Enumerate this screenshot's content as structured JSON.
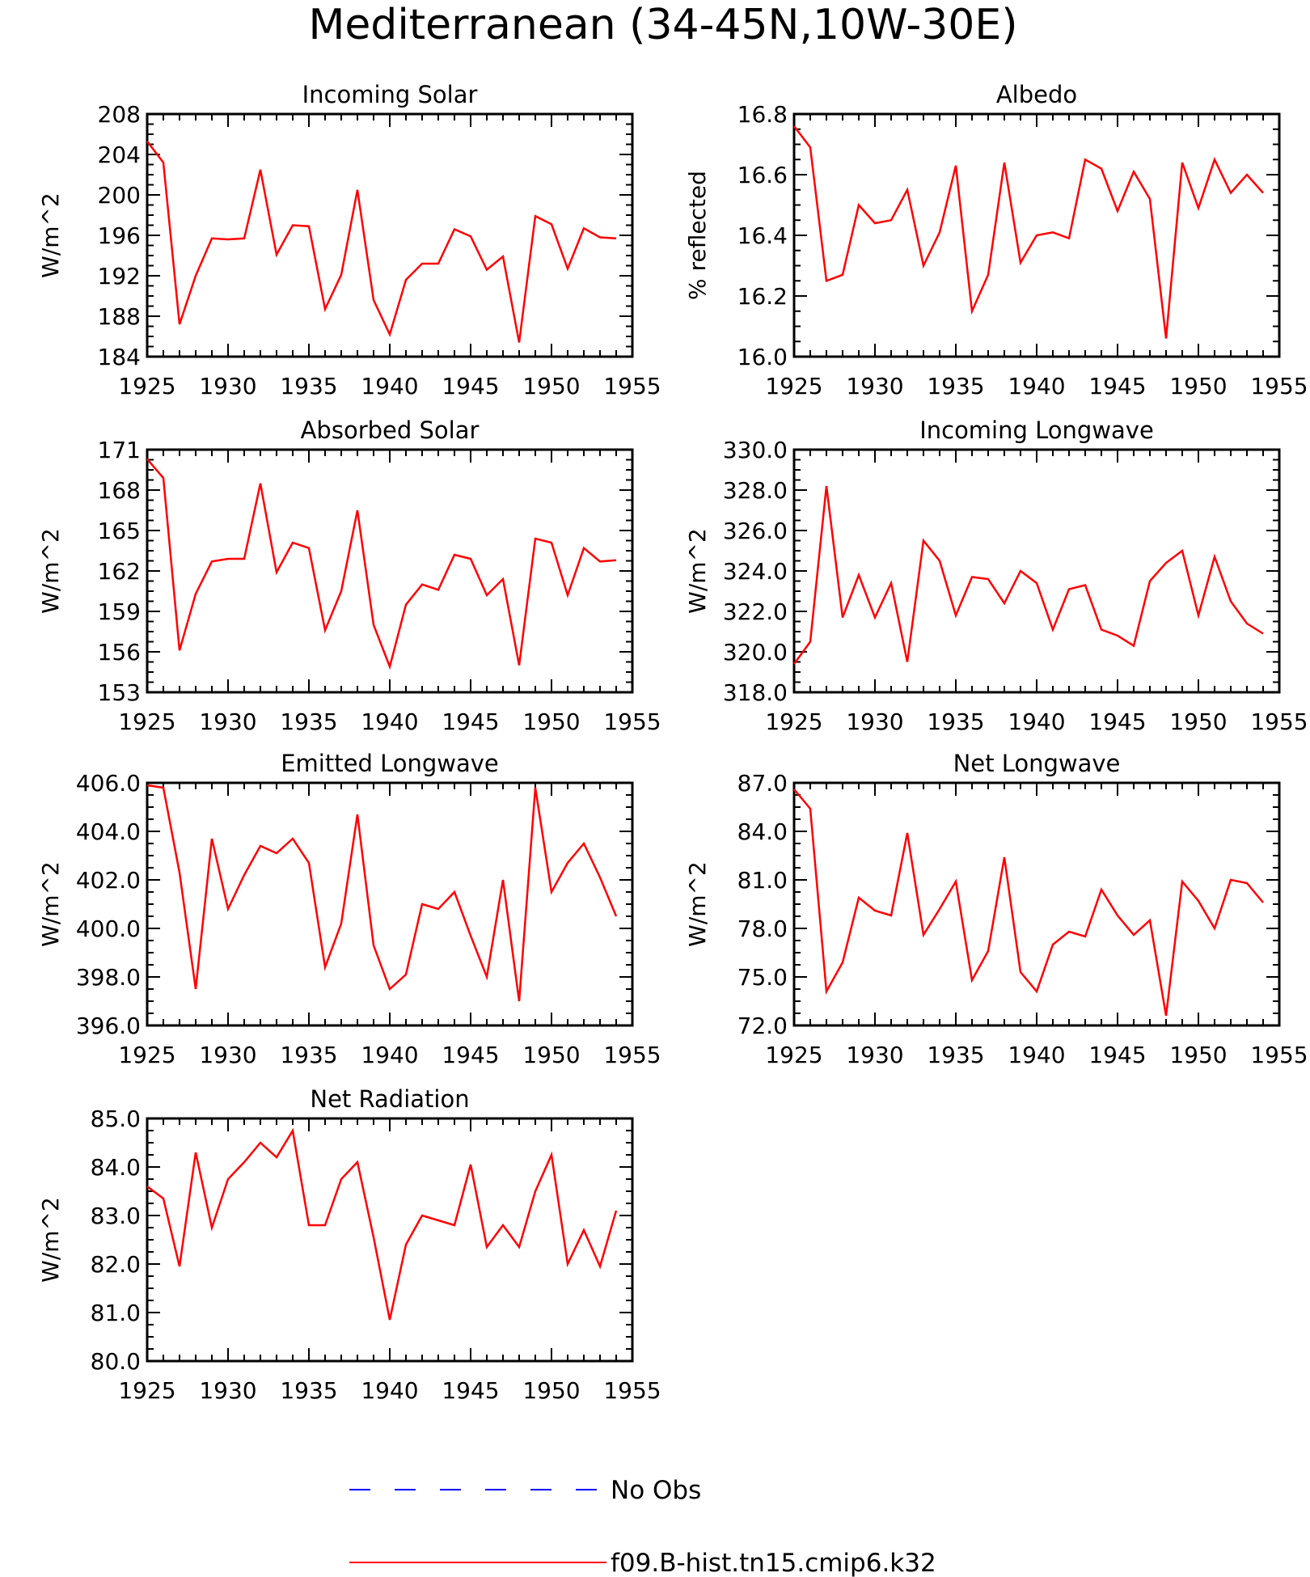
{
  "title": "Mediterranean (34-45N,10W-30E)",
  "legend": [
    {
      "label": "No Obs",
      "color": "#0000ff",
      "dash": "dashed"
    },
    {
      "label": "f09.B-hist.tn15.cmip6.k32",
      "color": "#ff0000",
      "dash": "solid"
    }
  ],
  "chart_data": [
    {
      "type": "line",
      "title": "Incoming Solar",
      "ylabel": "W/m^2",
      "xlim": [
        1925,
        1955
      ],
      "ylim": [
        184,
        208
      ],
      "xticks": [
        "1925",
        "1930",
        "1935",
        "1940",
        "1945",
        "1950",
        "1955"
      ],
      "yticks": [
        "184",
        "188",
        "192",
        "196",
        "200",
        "204",
        "208"
      ],
      "grid": false,
      "series": [
        {
          "color": "#ff0000",
          "x": [
            1925,
            1926,
            1927,
            1928,
            1929,
            1930,
            1931,
            1932,
            1933,
            1934,
            1935,
            1936,
            1937,
            1938,
            1939,
            1940,
            1941,
            1942,
            1943,
            1944,
            1945,
            1946,
            1947,
            1948,
            1949,
            1950,
            1951,
            1952,
            1953,
            1954
          ],
          "values": [
            205.3,
            203.2,
            187.2,
            192.0,
            195.7,
            195.6,
            195.7,
            202.5,
            194.1,
            197.0,
            196.9,
            188.7,
            192.1,
            200.5,
            189.6,
            186.2,
            191.6,
            193.2,
            193.2,
            196.6,
            195.9,
            192.6,
            193.9,
            185.4,
            197.9,
            197.1,
            192.7,
            196.7,
            195.8,
            195.7
          ]
        }
      ]
    },
    {
      "type": "line",
      "title": "Albedo",
      "ylabel": "% reflected",
      "xlim": [
        1925,
        1955
      ],
      "ylim": [
        16.0,
        16.8
      ],
      "xticks": [
        "1925",
        "1930",
        "1935",
        "1940",
        "1945",
        "1950",
        "1955"
      ],
      "yticks": [
        "16.0",
        "16.2",
        "16.4",
        "16.6",
        "16.8"
      ],
      "grid": false,
      "series": [
        {
          "color": "#ff0000",
          "x": [
            1925,
            1926,
            1927,
            1928,
            1929,
            1930,
            1931,
            1932,
            1933,
            1934,
            1935,
            1936,
            1937,
            1938,
            1939,
            1940,
            1941,
            1942,
            1943,
            1944,
            1945,
            1946,
            1947,
            1948,
            1949,
            1950,
            1951,
            1952,
            1953,
            1954
          ],
          "values": [
            16.76,
            16.69,
            16.25,
            16.27,
            16.5,
            16.44,
            16.45,
            16.55,
            16.3,
            16.41,
            16.63,
            16.15,
            16.27,
            16.64,
            16.31,
            16.4,
            16.41,
            16.39,
            16.65,
            16.62,
            16.48,
            16.61,
            16.52,
            16.06,
            16.64,
            16.49,
            16.65,
            16.54,
            16.6,
            16.54
          ]
        }
      ]
    },
    {
      "type": "line",
      "title": "Absorbed Solar",
      "ylabel": "W/m^2",
      "xlim": [
        1925,
        1955
      ],
      "ylim": [
        153,
        171
      ],
      "xticks": [
        "1925",
        "1930",
        "1935",
        "1940",
        "1945",
        "1950",
        "1955"
      ],
      "yticks": [
        "153",
        "156",
        "159",
        "162",
        "165",
        "168",
        "171"
      ],
      "grid": false,
      "series": [
        {
          "color": "#ff0000",
          "x": [
            1925,
            1926,
            1927,
            1928,
            1929,
            1930,
            1931,
            1932,
            1933,
            1934,
            1935,
            1936,
            1937,
            1938,
            1939,
            1940,
            1941,
            1942,
            1943,
            1944,
            1945,
            1946,
            1947,
            1948,
            1949,
            1950,
            1951,
            1952,
            1953,
            1954
          ],
          "values": [
            170.3,
            168.9,
            156.1,
            160.3,
            162.7,
            162.9,
            162.9,
            168.5,
            161.9,
            164.1,
            163.7,
            157.6,
            160.5,
            166.5,
            158.0,
            154.9,
            159.5,
            161.0,
            160.6,
            163.2,
            162.9,
            160.2,
            161.4,
            155.0,
            164.4,
            164.1,
            160.2,
            163.7,
            162.7,
            162.8
          ]
        }
      ]
    },
    {
      "type": "line",
      "title": "Incoming Longwave",
      "ylabel": "W/m^2",
      "xlim": [
        1925,
        1955
      ],
      "ylim": [
        318.0,
        330.0
      ],
      "xticks": [
        "1925",
        "1930",
        "1935",
        "1940",
        "1945",
        "1950",
        "1955"
      ],
      "yticks": [
        "318.0",
        "320.0",
        "322.0",
        "324.0",
        "326.0",
        "328.0",
        "330.0"
      ],
      "grid": false,
      "series": [
        {
          "color": "#ff0000",
          "x": [
            1925,
            1926,
            1927,
            1928,
            1929,
            1930,
            1931,
            1932,
            1933,
            1934,
            1935,
            1936,
            1937,
            1938,
            1939,
            1940,
            1941,
            1942,
            1943,
            1944,
            1945,
            1946,
            1947,
            1948,
            1949,
            1950,
            1951,
            1952,
            1953,
            1954
          ],
          "values": [
            319.4,
            320.5,
            328.2,
            321.7,
            323.8,
            321.7,
            323.4,
            319.5,
            325.5,
            324.5,
            321.8,
            323.7,
            323.6,
            322.4,
            324.0,
            323.4,
            321.1,
            323.1,
            323.3,
            321.1,
            320.8,
            320.3,
            323.5,
            324.4,
            325.0,
            321.8,
            324.7,
            322.5,
            321.4,
            320.9
          ]
        }
      ]
    },
    {
      "type": "line",
      "title": "Emitted Longwave",
      "ylabel": "W/m^2",
      "xlim": [
        1925,
        1955
      ],
      "ylim": [
        396.0,
        406.0
      ],
      "xticks": [
        "1925",
        "1930",
        "1935",
        "1940",
        "1945",
        "1950",
        "1955"
      ],
      "yticks": [
        "396.0",
        "398.0",
        "400.0",
        "402.0",
        "404.0",
        "406.0"
      ],
      "grid": false,
      "series": [
        {
          "color": "#ff0000",
          "x": [
            1925,
            1926,
            1927,
            1928,
            1929,
            1930,
            1931,
            1932,
            1933,
            1934,
            1935,
            1936,
            1937,
            1938,
            1939,
            1940,
            1941,
            1942,
            1943,
            1944,
            1945,
            1946,
            1947,
            1948,
            1949,
            1950,
            1951,
            1952,
            1953,
            1954
          ],
          "values": [
            405.9,
            405.8,
            402.3,
            397.5,
            403.7,
            400.8,
            402.2,
            403.4,
            403.1,
            403.7,
            402.7,
            398.4,
            400.2,
            404.7,
            399.3,
            397.5,
            398.1,
            401.0,
            400.8,
            401.5,
            399.7,
            398.0,
            402.0,
            397.0,
            405.8,
            401.5,
            402.7,
            403.5,
            402.1,
            400.5
          ]
        }
      ]
    },
    {
      "type": "line",
      "title": "Net Longwave",
      "ylabel": "W/m^2",
      "xlim": [
        1925,
        1955
      ],
      "ylim": [
        72.0,
        87.0
      ],
      "xticks": [
        "1925",
        "1930",
        "1935",
        "1940",
        "1945",
        "1950",
        "1955"
      ],
      "yticks": [
        "72.0",
        "75.0",
        "78.0",
        "81.0",
        "84.0",
        "87.0"
      ],
      "grid": false,
      "series": [
        {
          "color": "#ff0000",
          "x": [
            1925,
            1926,
            1927,
            1928,
            1929,
            1930,
            1931,
            1932,
            1933,
            1934,
            1935,
            1936,
            1937,
            1938,
            1939,
            1940,
            1941,
            1942,
            1943,
            1944,
            1945,
            1946,
            1947,
            1948,
            1949,
            1950,
            1951,
            1952,
            1953,
            1954
          ],
          "values": [
            86.6,
            85.4,
            74.1,
            75.9,
            79.9,
            79.1,
            78.8,
            83.9,
            77.6,
            79.2,
            80.9,
            74.8,
            76.6,
            82.4,
            75.3,
            74.1,
            77.0,
            77.8,
            77.5,
            80.4,
            78.8,
            77.6,
            78.5,
            72.6,
            80.9,
            79.7,
            78.0,
            81.0,
            80.8,
            79.6
          ]
        }
      ]
    },
    {
      "type": "line",
      "title": "Net Radiation",
      "ylabel": "W/m^2",
      "xlim": [
        1925,
        1955
      ],
      "ylim": [
        80.0,
        85.0
      ],
      "xticks": [
        "1925",
        "1930",
        "1935",
        "1940",
        "1945",
        "1950",
        "1955"
      ],
      "yticks": [
        "80.0",
        "81.0",
        "82.0",
        "83.0",
        "84.0",
        "85.0"
      ],
      "grid": false,
      "series": [
        {
          "color": "#ff0000",
          "x": [
            1925,
            1926,
            1927,
            1928,
            1929,
            1930,
            1931,
            1932,
            1933,
            1934,
            1935,
            1936,
            1937,
            1938,
            1939,
            1940,
            1941,
            1942,
            1943,
            1944,
            1945,
            1946,
            1947,
            1948,
            1949,
            1950,
            1951,
            1952,
            1953,
            1954
          ],
          "values": [
            83.6,
            83.35,
            81.95,
            84.3,
            82.75,
            83.75,
            84.1,
            84.5,
            84.2,
            84.75,
            82.8,
            82.8,
            83.75,
            84.1,
            82.55,
            80.85,
            82.4,
            83.0,
            82.9,
            82.8,
            84.05,
            82.35,
            82.8,
            82.35,
            83.5,
            84.25,
            82.0,
            82.7,
            81.95,
            83.1
          ]
        }
      ]
    }
  ]
}
